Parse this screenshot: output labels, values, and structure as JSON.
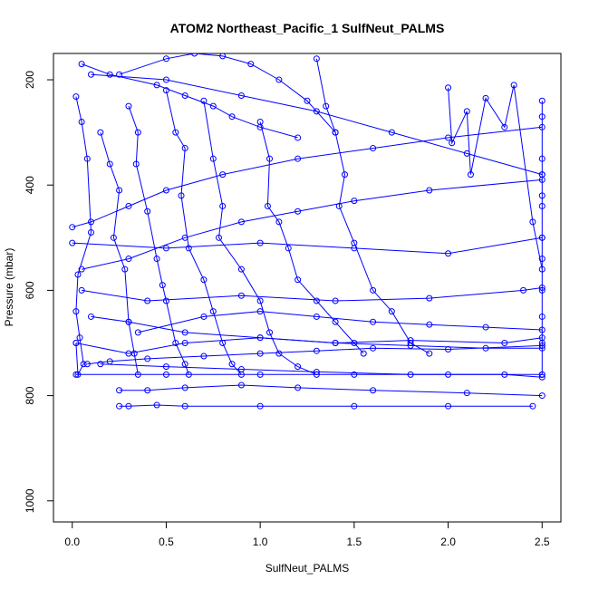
{
  "chart_data": {
    "type": "line",
    "title": "ATOM2 Northeast_Pacific_1 SulfNeut_PALMS",
    "xlabel": "SulfNeut_PALMS",
    "ylabel": "Pressure (mbar)",
    "xlim": [
      -0.1,
      2.6
    ],
    "ylim": [
      1040,
      150
    ],
    "y_inverted": true,
    "x_ticks": [
      "0.0",
      "0.5",
      "1.0",
      "1.5",
      "2.0",
      "2.5"
    ],
    "y_ticks": [
      "200",
      "400",
      "600",
      "800",
      "1000"
    ],
    "grid": false,
    "color": "#0000ff",
    "marker": "open-circle",
    "series": [
      {
        "x": [
          0.02,
          0.05,
          0.08,
          0.1,
          0.03,
          0.02,
          0.04,
          0.06,
          0.03,
          0.02
        ],
        "y": [
          232,
          280,
          350,
          490,
          570,
          640,
          690,
          740,
          760,
          700
        ]
      },
      {
        "x": [
          0.15,
          0.2,
          0.25,
          0.22,
          0.28,
          0.3,
          0.33,
          0.35
        ],
        "y": [
          300,
          360,
          410,
          500,
          560,
          660,
          720,
          760
        ]
      },
      {
        "x": [
          0.3,
          0.35,
          0.34,
          0.4,
          0.45,
          0.48,
          0.5,
          0.55,
          0.6,
          0.62
        ],
        "y": [
          250,
          300,
          360,
          450,
          540,
          590,
          620,
          700,
          740,
          760
        ]
      },
      {
        "x": [
          0.5,
          0.55,
          0.6,
          0.58,
          0.62,
          0.7,
          0.75,
          0.8,
          0.85,
          0.9
        ],
        "y": [
          220,
          300,
          330,
          420,
          520,
          580,
          640,
          700,
          740,
          760
        ]
      },
      {
        "x": [
          0.7,
          0.75,
          0.8,
          0.78,
          0.9,
          1.0,
          1.05,
          1.1,
          1.2,
          1.3
        ],
        "y": [
          240,
          350,
          440,
          500,
          560,
          620,
          680,
          720,
          745,
          760
        ]
      },
      {
        "x": [
          1.0,
          1.05,
          1.04,
          1.1,
          1.15,
          1.2,
          1.3,
          1.4,
          1.5,
          1.55
        ],
        "y": [
          280,
          350,
          440,
          470,
          520,
          580,
          620,
          660,
          700,
          720
        ]
      },
      {
        "x": [
          1.3,
          1.35,
          1.4,
          1.45,
          1.42,
          1.5,
          1.6,
          1.7,
          1.8,
          1.9
        ],
        "y": [
          160,
          250,
          300,
          380,
          440,
          510,
          600,
          640,
          700,
          720
        ]
      },
      {
        "x": [
          2.0,
          2.02,
          2.1,
          2.12,
          2.2,
          2.3,
          2.35,
          2.45,
          2.5
        ],
        "y": [
          215,
          320,
          260,
          380,
          235,
          290,
          210,
          470,
          560
        ]
      },
      {
        "x": [
          2.5,
          2.5,
          2.5,
          2.5,
          2.5,
          2.5,
          2.5,
          2.5,
          2.5,
          2.5,
          2.5,
          2.5
        ],
        "y": [
          240,
          270,
          350,
          380,
          420,
          440,
          500,
          540,
          600,
          650,
          700,
          760
        ]
      },
      {
        "x": [
          0.0,
          0.1,
          0.3,
          0.5,
          0.8,
          1.2,
          1.6,
          2.0,
          2.5
        ],
        "y": [
          480,
          470,
          440,
          410,
          380,
          350,
          330,
          310,
          290
        ]
      },
      {
        "x": [
          0.0,
          0.5,
          1.0,
          1.5,
          2.0,
          2.5
        ],
        "y": [
          510,
          520,
          510,
          520,
          530,
          500
        ]
      },
      {
        "x": [
          0.05,
          0.4,
          0.9,
          1.4,
          1.9,
          2.4,
          2.5
        ],
        "y": [
          600,
          620,
          610,
          620,
          615,
          600,
          595
        ]
      },
      {
        "x": [
          0.1,
          0.3,
          0.6,
          1.0,
          1.4,
          1.8,
          2.2,
          2.5
        ],
        "y": [
          650,
          660,
          680,
          690,
          700,
          705,
          710,
          710
        ]
      },
      {
        "x": [
          0.08,
          0.2,
          0.4,
          0.7,
          1.0,
          1.3,
          1.6,
          2.0,
          2.5
        ],
        "y": [
          740,
          735,
          730,
          725,
          720,
          715,
          710,
          712,
          705
        ]
      },
      {
        "x": [
          0.02,
          0.5,
          1.0,
          1.5,
          2.0,
          2.5
        ],
        "y": [
          760,
          760,
          760,
          760,
          760,
          760
        ]
      },
      {
        "x": [
          0.25,
          0.4,
          0.6,
          0.9,
          1.2,
          1.6,
          2.1,
          2.5
        ],
        "y": [
          790,
          790,
          785,
          780,
          785,
          790,
          795,
          800
        ]
      },
      {
        "x": [
          0.25,
          0.3,
          0.45,
          0.6,
          1.0,
          1.5,
          2.0,
          2.45
        ],
        "y": [
          820,
          820,
          818,
          820,
          820,
          820,
          820,
          820
        ]
      },
      {
        "x": [
          0.05,
          0.3,
          0.6,
          0.9,
          1.2,
          1.5,
          1.9,
          2.5
        ],
        "y": [
          560,
          540,
          500,
          470,
          450,
          430,
          410,
          390
        ]
      },
      {
        "x": [
          0.1,
          0.5,
          0.9,
          1.3,
          1.7,
          2.1,
          2.5
        ],
        "y": [
          190,
          200,
          230,
          260,
          300,
          340,
          380
        ]
      },
      {
        "x": [
          0.02,
          0.3,
          0.6,
          1.0,
          1.4,
          1.8,
          2.3,
          2.5
        ],
        "y": [
          700,
          720,
          700,
          690,
          700,
          695,
          700,
          690
        ]
      },
      {
        "x": [
          0.15,
          0.5,
          0.9,
          1.3,
          1.8,
          2.3,
          2.5
        ],
        "y": [
          740,
          745,
          750,
          755,
          760,
          760,
          765
        ]
      },
      {
        "x": [
          0.35,
          0.7,
          1.0,
          1.3,
          1.6,
          1.9,
          2.2,
          2.5
        ],
        "y": [
          680,
          650,
          640,
          650,
          660,
          665,
          670,
          675
        ]
      },
      {
        "x": [
          0.05,
          0.2,
          0.45,
          0.6,
          0.75,
          0.85,
          1.0,
          1.2
        ],
        "y": [
          170,
          190,
          210,
          230,
          250,
          270,
          290,
          310
        ]
      },
      {
        "x": [
          0.25,
          0.5,
          0.65,
          0.8,
          0.95,
          1.1,
          1.25,
          1.4
        ],
        "y": [
          190,
          160,
          150,
          155,
          170,
          200,
          240,
          300
        ]
      }
    ]
  }
}
